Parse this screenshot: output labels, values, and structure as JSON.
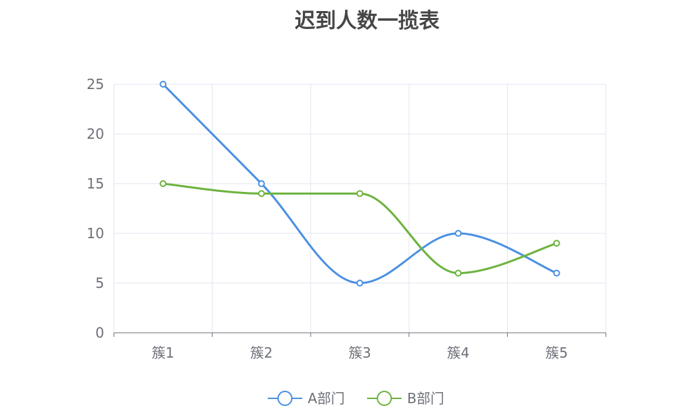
{
  "chart_data": {
    "type": "line",
    "title": "迟到人数一揽表",
    "categories": [
      "簇1",
      "簇2",
      "簇3",
      "簇4",
      "簇5"
    ],
    "series": [
      {
        "name": "A部门",
        "values": [
          25,
          15,
          5,
          10,
          6
        ],
        "color": "#4a90e2"
      },
      {
        "name": "B部门",
        "values": [
          15,
          14,
          14,
          6,
          9
        ],
        "color": "#6db33f"
      }
    ],
    "yticks": [
      0,
      5,
      10,
      15,
      20,
      25
    ],
    "ylim": [
      0,
      25
    ],
    "grid": true,
    "smooth": true,
    "legend_position": "bottom-center"
  }
}
